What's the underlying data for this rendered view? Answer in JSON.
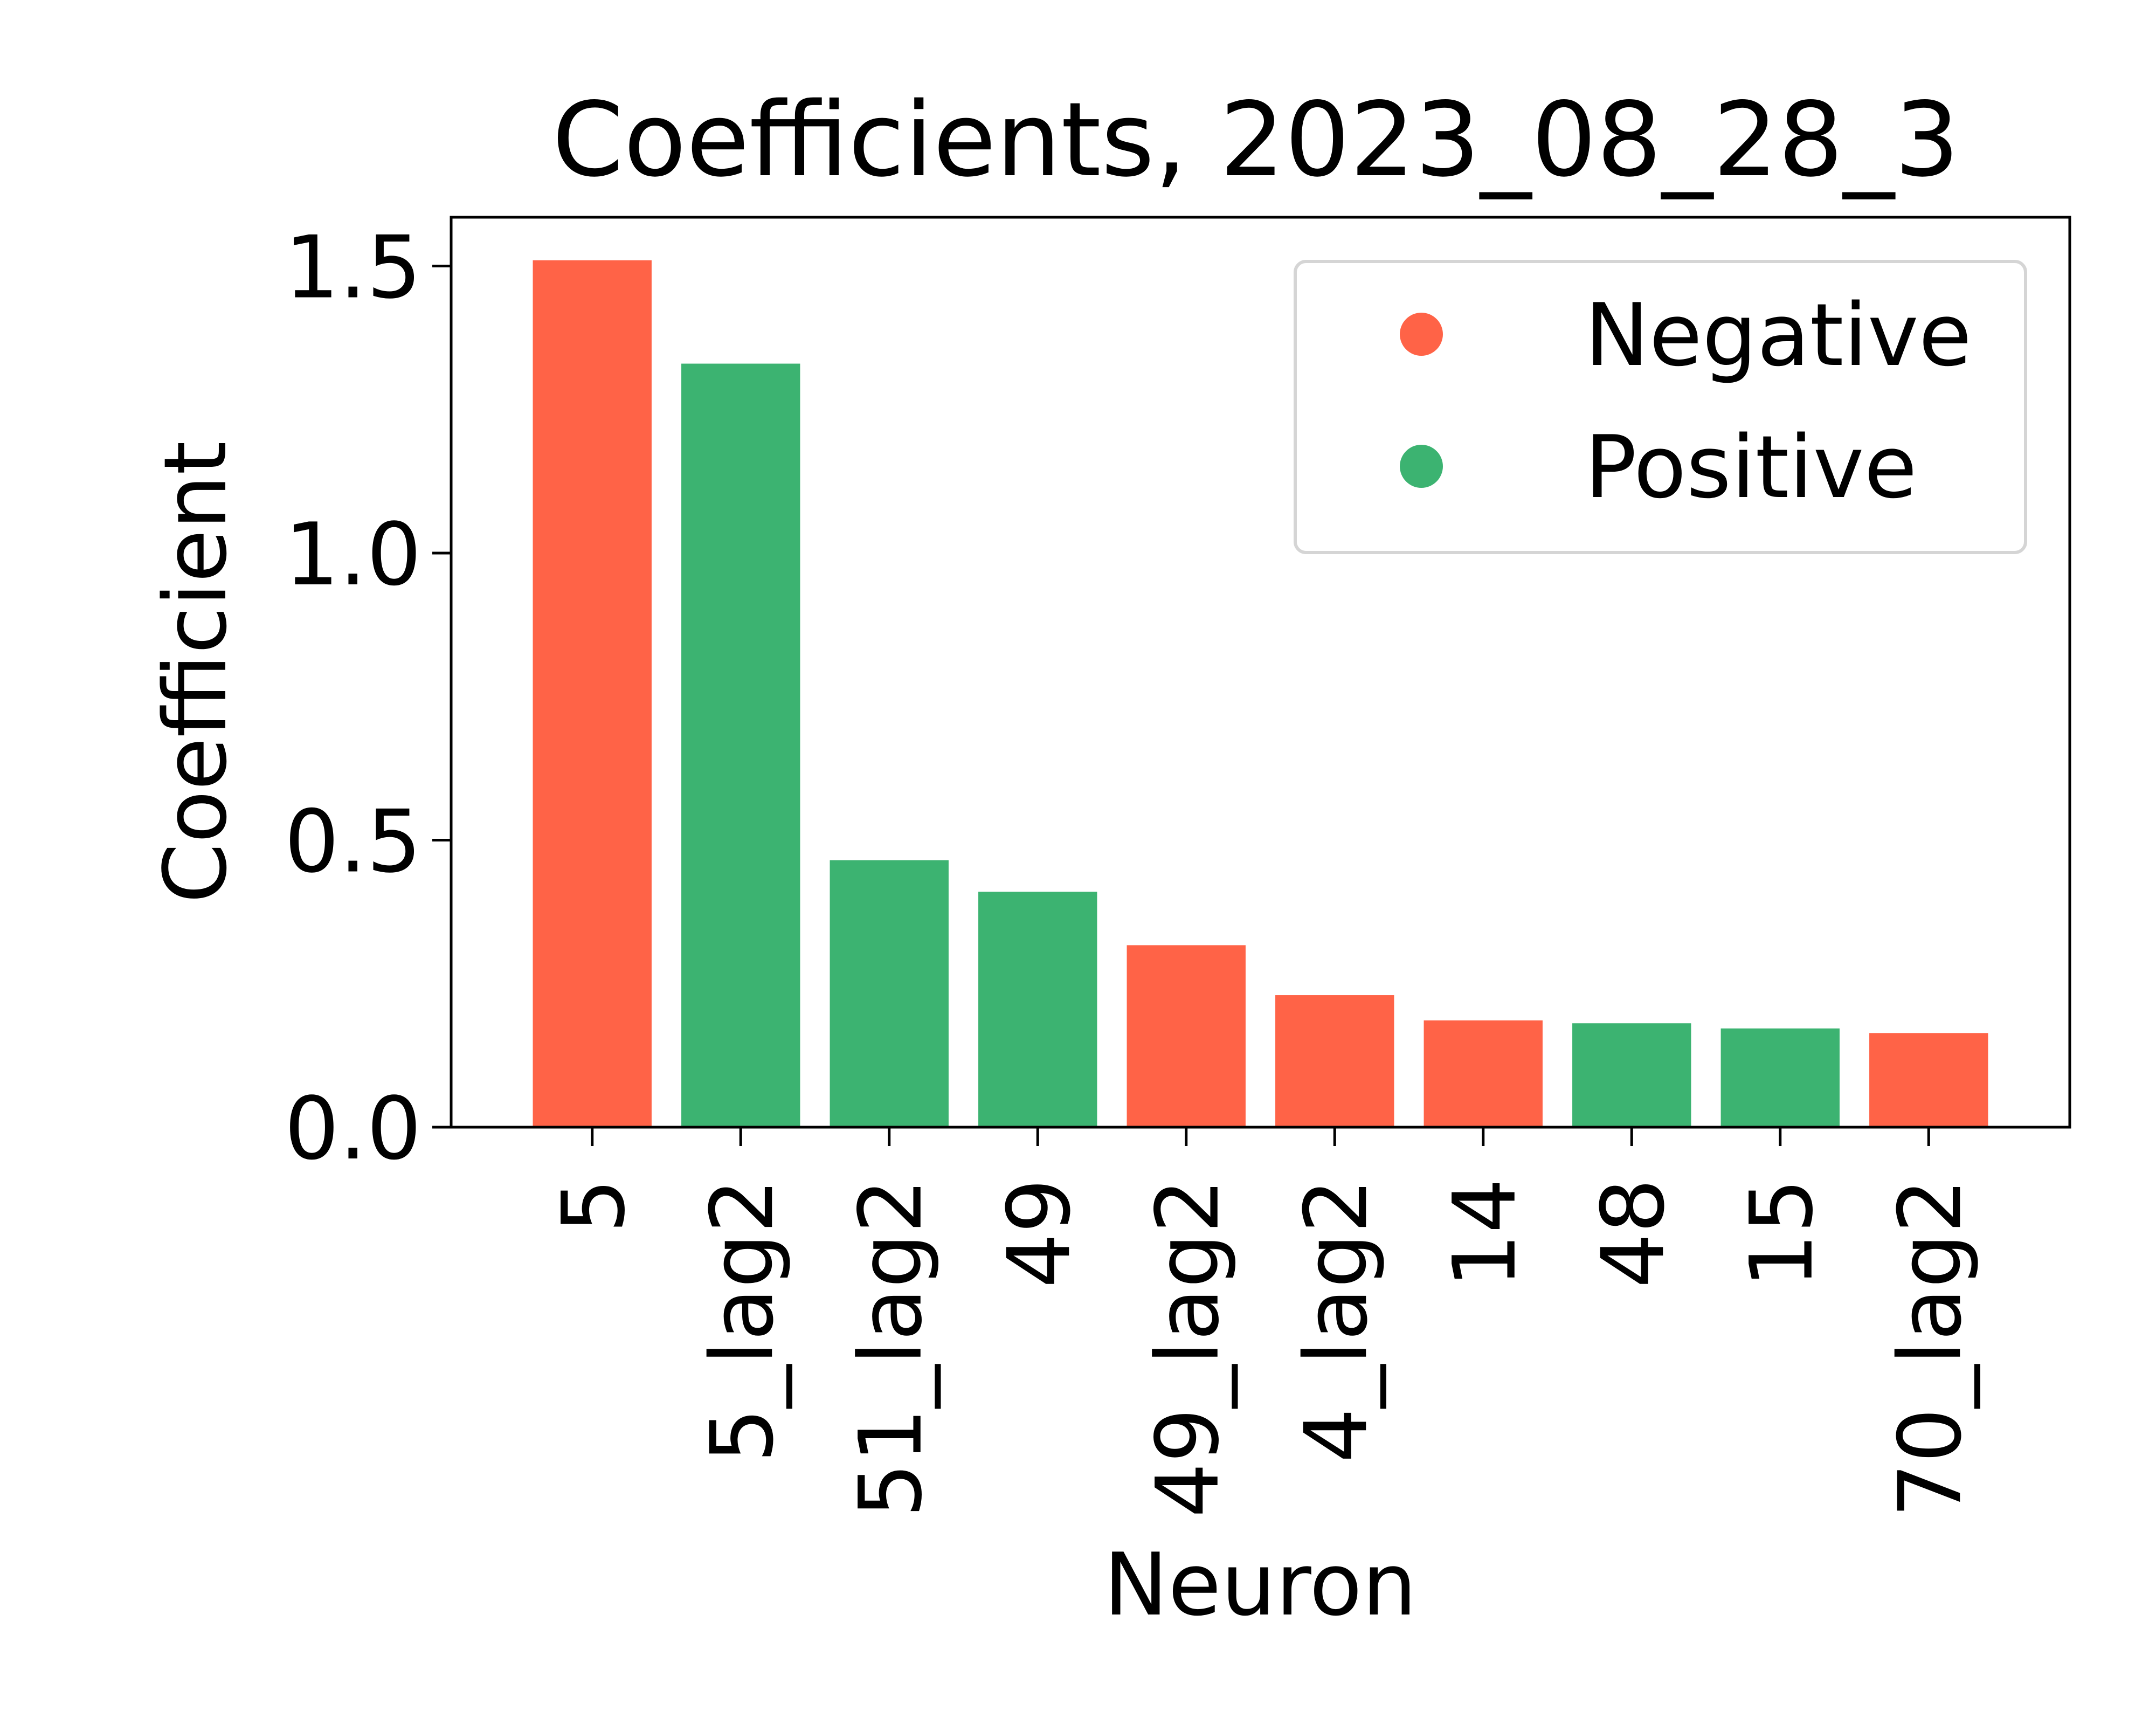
{
  "chart_data": {
    "type": "bar",
    "title": "Coefficients, 2023_08_28_3",
    "xlabel": "Neuron",
    "ylabel": "Coefficient",
    "categories": [
      "5",
      "5_lag2",
      "51_lag2",
      "49",
      "49_lag2",
      "4_lag2",
      "14",
      "48",
      "15",
      "70_lag2"
    ],
    "values": [
      1.51,
      1.33,
      0.465,
      0.41,
      0.317,
      0.23,
      0.186,
      0.181,
      0.172,
      0.164
    ],
    "signs": [
      "Negative",
      "Positive",
      "Positive",
      "Positive",
      "Negative",
      "Negative",
      "Negative",
      "Positive",
      "Positive",
      "Negative"
    ],
    "ylim": [
      0,
      1.585
    ],
    "yticks": [
      0.0,
      0.5,
      1.0,
      1.5
    ],
    "ytick_labels": [
      "0.0",
      "0.5",
      "1.0",
      "1.5"
    ],
    "grid": false,
    "legend": {
      "placement": "top-right",
      "entries": [
        {
          "label": "Negative",
          "color": "#ff6347"
        },
        {
          "label": "Positive",
          "color": "#3cb371"
        }
      ]
    },
    "colors": {
      "Negative": "#ff6347",
      "Positive": "#3cb371"
    }
  }
}
